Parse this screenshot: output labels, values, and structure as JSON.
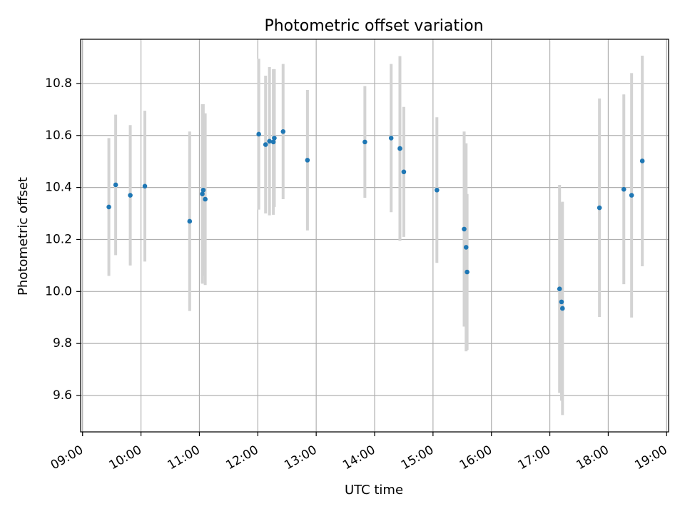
{
  "chart_data": {
    "type": "scatter",
    "title": "Photometric offset variation",
    "xlabel": "UTC time",
    "ylabel": "Photometric offset",
    "xlim": [
      "09:00",
      "19:00"
    ],
    "ylim": [
      9.46,
      10.97
    ],
    "grid": true,
    "x_ticks": [
      "09:00",
      "10:00",
      "11:00",
      "12:00",
      "13:00",
      "14:00",
      "15:00",
      "16:00",
      "17:00",
      "18:00",
      "19:00"
    ],
    "y_ticks": [
      9.6,
      9.8,
      10.0,
      10.2,
      10.4,
      10.6,
      10.8
    ],
    "y_tick_labels": [
      "9.6",
      "9.8",
      "10.0",
      "10.2",
      "10.4",
      "10.6",
      "10.8"
    ],
    "colors": {
      "points": "#1f77b4",
      "errorbars": "#d3d3d3",
      "grid": "#b0b0b0"
    },
    "series": [
      {
        "points": [
          {
            "x": "09:27",
            "y": 10.325,
            "yerr": 0.265
          },
          {
            "x": "09:34",
            "y": 10.41,
            "yerr": 0.27
          },
          {
            "x": "09:49",
            "y": 10.37,
            "yerr": 0.27
          },
          {
            "x": "10:04",
            "y": 10.405,
            "yerr": 0.29
          },
          {
            "x": "10:50",
            "y": 10.27,
            "yerr": 0.345
          },
          {
            "x": "11:03",
            "y": 10.375,
            "yerr": 0.345
          },
          {
            "x": "11:04",
            "y": 10.39,
            "yerr": 0.33
          },
          {
            "x": "11:06",
            "y": 10.355,
            "yerr": 0.33
          },
          {
            "x": "12:01",
            "y": 10.605,
            "yerr": 0.29
          },
          {
            "x": "12:08",
            "y": 10.565,
            "yerr": 0.265
          },
          {
            "x": "12:12",
            "y": 10.578,
            "yerr": 0.285
          },
          {
            "x": "12:16",
            "y": 10.575,
            "yerr": 0.28
          },
          {
            "x": "12:17",
            "y": 10.59,
            "yerr": 0.265
          },
          {
            "x": "12:26",
            "y": 10.615,
            "yerr": 0.26
          },
          {
            "x": "12:51",
            "y": 10.505,
            "yerr": 0.27
          },
          {
            "x": "13:50",
            "y": 10.575,
            "yerr": 0.215
          },
          {
            "x": "14:17",
            "y": 10.59,
            "yerr": 0.285
          },
          {
            "x": "14:26",
            "y": 10.55,
            "yerr": 0.355
          },
          {
            "x": "14:30",
            "y": 10.46,
            "yerr": 0.25
          },
          {
            "x": "15:04",
            "y": 10.39,
            "yerr": 0.28
          },
          {
            "x": "15:32",
            "y": 10.24,
            "yerr": 0.375
          },
          {
            "x": "15:34",
            "y": 10.17,
            "yerr": 0.4
          },
          {
            "x": "15:35",
            "y": 10.075,
            "yerr": 0.3
          },
          {
            "x": "17:10",
            "y": 10.01,
            "yerr": 0.4
          },
          {
            "x": "17:12",
            "y": 9.96,
            "yerr": 0.38
          },
          {
            "x": "17:13",
            "y": 9.935,
            "yerr": 0.41
          },
          {
            "x": "17:51",
            "y": 10.322,
            "yerr": 0.42
          },
          {
            "x": "18:16",
            "y": 10.393,
            "yerr": 0.365
          },
          {
            "x": "18:24",
            "y": 10.37,
            "yerr": 0.47
          },
          {
            "x": "18:35",
            "y": 10.502,
            "yerr": 0.405
          }
        ]
      }
    ]
  }
}
